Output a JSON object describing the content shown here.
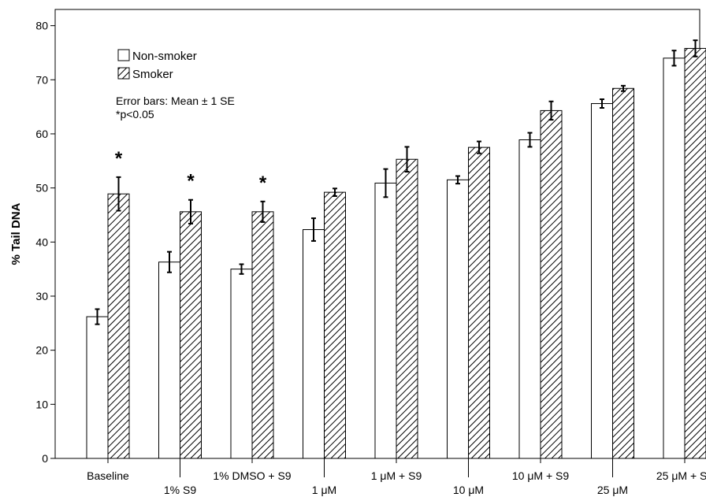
{
  "chart_data": {
    "type": "bar",
    "title": "",
    "xlabel": "",
    "ylabel": "% Tail DNA",
    "ylim": [
      0,
      83
    ],
    "yticks": [
      0,
      10,
      20,
      30,
      40,
      50,
      60,
      70,
      80
    ],
    "grid": false,
    "legend_position": "top-left",
    "categories": [
      "Baseline",
      "1% S9",
      "1% DMSO + S9",
      "1 μM",
      "1 μM + S9",
      "10 μM",
      "10 μM + S9",
      "25 μM",
      "25 μM + S9"
    ],
    "series": [
      {
        "name": "Non-smoker",
        "pattern": "solid-white",
        "values": [
          26.2,
          36.3,
          35.0,
          42.3,
          50.9,
          51.5,
          58.9,
          65.6,
          74.0
        ],
        "errors": [
          1.4,
          1.9,
          0.9,
          2.1,
          2.6,
          0.7,
          1.3,
          0.8,
          1.4
        ]
      },
      {
        "name": "Smoker",
        "pattern": "hatched",
        "values": [
          48.9,
          45.6,
          45.6,
          49.2,
          55.3,
          57.5,
          64.3,
          68.4,
          75.8
        ],
        "errors": [
          3.1,
          2.2,
          1.9,
          0.7,
          2.3,
          1.1,
          1.7,
          0.5,
          1.5
        ]
      }
    ],
    "significance_marks": [
      "*",
      "*",
      "*",
      "",
      "",
      "",
      "",
      "",
      ""
    ],
    "annotations": [
      "Error bars: Mean ± 1 SE",
      "*p<0.05"
    ]
  },
  "colors": {
    "bar_fill": "#ffffff",
    "bar_stroke": "#000000",
    "hatch": "#000000",
    "axis": "#000000"
  }
}
